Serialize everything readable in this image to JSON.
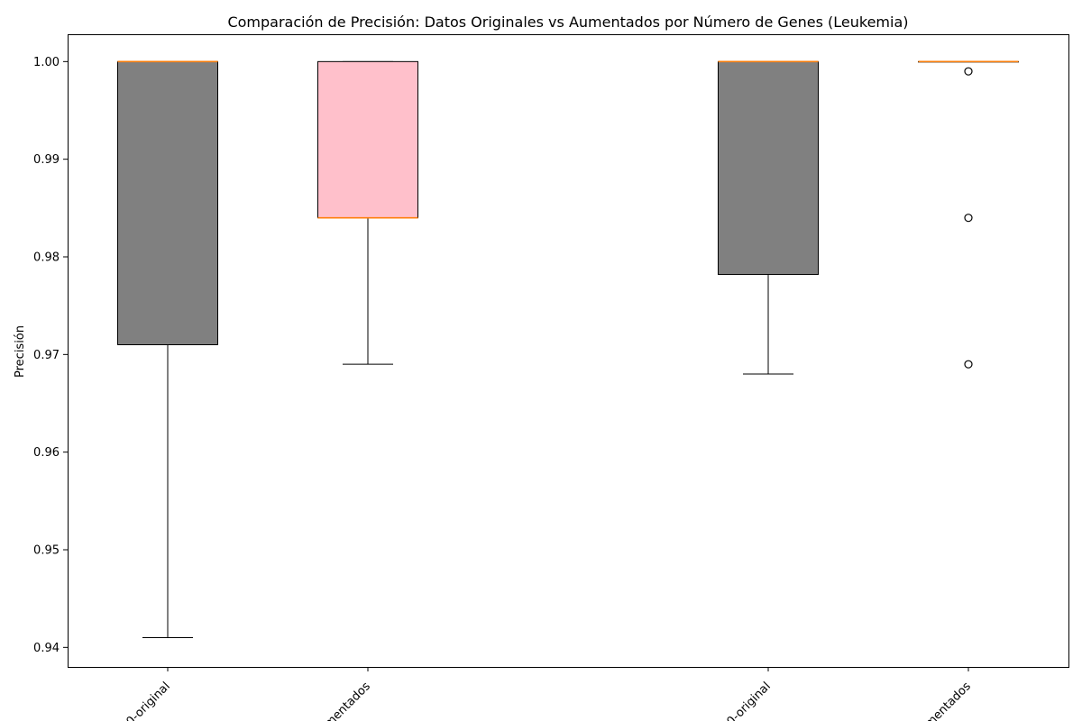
{
  "chart_data": {
    "type": "box",
    "title": "Comparación de Precisión: Datos Originales vs Aumentados por Número de Genes (Leukemia)",
    "xlabel": "",
    "ylabel": "Precisión",
    "ylim": [
      0.938,
      1.0028
    ],
    "yticks": [
      0.94,
      0.95,
      0.96,
      0.97,
      0.98,
      0.99,
      1.0
    ],
    "ytick_labels": [
      "0.94",
      "0.95",
      "0.96",
      "0.97",
      "0.98",
      "0.99",
      "1.00"
    ],
    "categories": [
      "0-original",
      "mentados",
      "0-original",
      "mentados"
    ],
    "boxes": [
      {
        "category": "0-original",
        "whisker_low": 0.941,
        "q1": 0.971,
        "median": 1.0,
        "q3": 1.0,
        "whisker_high": 1.0,
        "fliers": [],
        "color": "#808080"
      },
      {
        "category": "mentados",
        "whisker_low": 0.969,
        "q1": 0.984,
        "median": 0.984,
        "q3": 1.0,
        "whisker_high": 1.0,
        "fliers": [],
        "color": "#ffc0cb"
      },
      {
        "category": "0-original",
        "whisker_low": 0.968,
        "q1": 0.9782,
        "median": 1.0,
        "q3": 1.0,
        "whisker_high": 1.0,
        "fliers": [],
        "color": "#808080"
      },
      {
        "category": "mentados",
        "whisker_low": 1.0,
        "q1": 1.0,
        "median": 1.0,
        "q3": 1.0,
        "whisker_high": 1.0,
        "fliers": [
          0.999,
          0.984,
          0.969
        ],
        "color": "#ffc0cb"
      }
    ],
    "median_color": "#ff7f0e",
    "grid": false,
    "legend": "none"
  }
}
